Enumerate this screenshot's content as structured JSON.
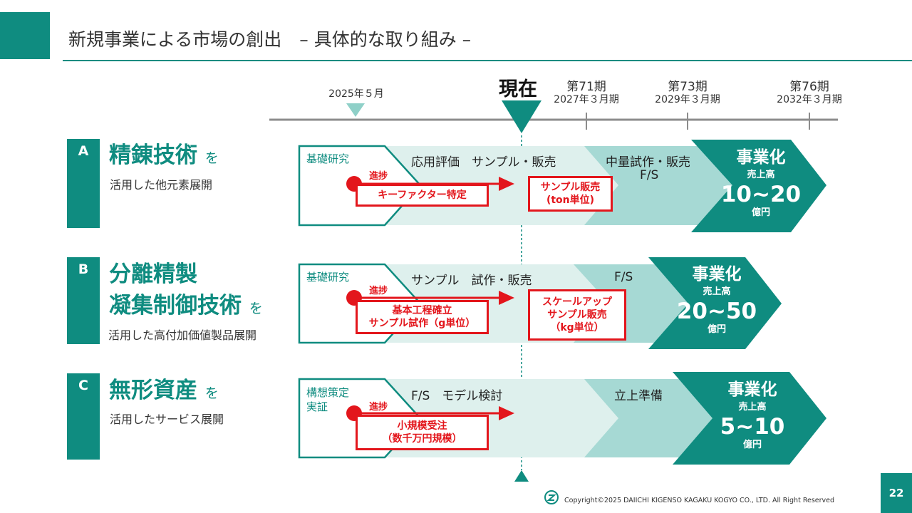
{
  "title": "新規事業による市場の創出　– 具体的な取り組み –",
  "timeline": {
    "start": "2025年５月",
    "now": "現在",
    "milestones": [
      {
        "period": "第71期",
        "date": "2027年３月期"
      },
      {
        "period": "第73期",
        "date": "2029年３月期"
      },
      {
        "period": "第76期",
        "date": "2032年３月期"
      }
    ]
  },
  "shinchoku_label": "進捗",
  "goal_labels": {
    "title": "事業化",
    "sales": "売上高",
    "unit": "億円"
  },
  "rows": [
    {
      "letter": "A",
      "title_lines": [
        "精錬技術"
      ],
      "wo": "を",
      "subtitle": "活用した他元素展開",
      "start_stage": "基礎研究",
      "stage1": "応用評価　サンプル・販売",
      "stage2": "中量試作・販売",
      "stage2b": "F/S",
      "progress_box": "キーファクター特定",
      "target_box": [
        "サンプル販売",
        "(ton単位)"
      ],
      "goal_range": "10~20"
    },
    {
      "letter": "B",
      "title_lines": [
        "分離精製",
        "凝集制御技術"
      ],
      "wo": "を",
      "subtitle": "活用した高付加価値製品展開",
      "start_stage": "基礎研究",
      "stage1": "サンプル　試作・販売",
      "stage2": "F/S",
      "progress_box": [
        "基本工程確立",
        "サンプル試作（g単位）"
      ],
      "target_box": [
        "スケールアップ",
        "サンプル販売",
        "（kg単位）"
      ],
      "goal_range": "20~50"
    },
    {
      "letter": "C",
      "title_lines": [
        "無形資産"
      ],
      "wo": "を",
      "subtitle": "活用したサービス展開",
      "start_stage": [
        "構想策定",
        "実証"
      ],
      "stage1": "F/S　モデル検討",
      "stage2": "立上準備",
      "progress_box": [
        "小規模受注",
        "（数千万円規模）"
      ],
      "goal_range": "5~10"
    }
  ],
  "footer": "Copyright©2025 DAIICHI KIGENSO KAGAKU KOGYO CO., LTD. All Right Reserved",
  "page_number": "22",
  "colors": {
    "teal": "#0f8c80",
    "light_teal": "#a6d9d4",
    "pale_teal": "#def0ed",
    "red": "#e3161c"
  }
}
